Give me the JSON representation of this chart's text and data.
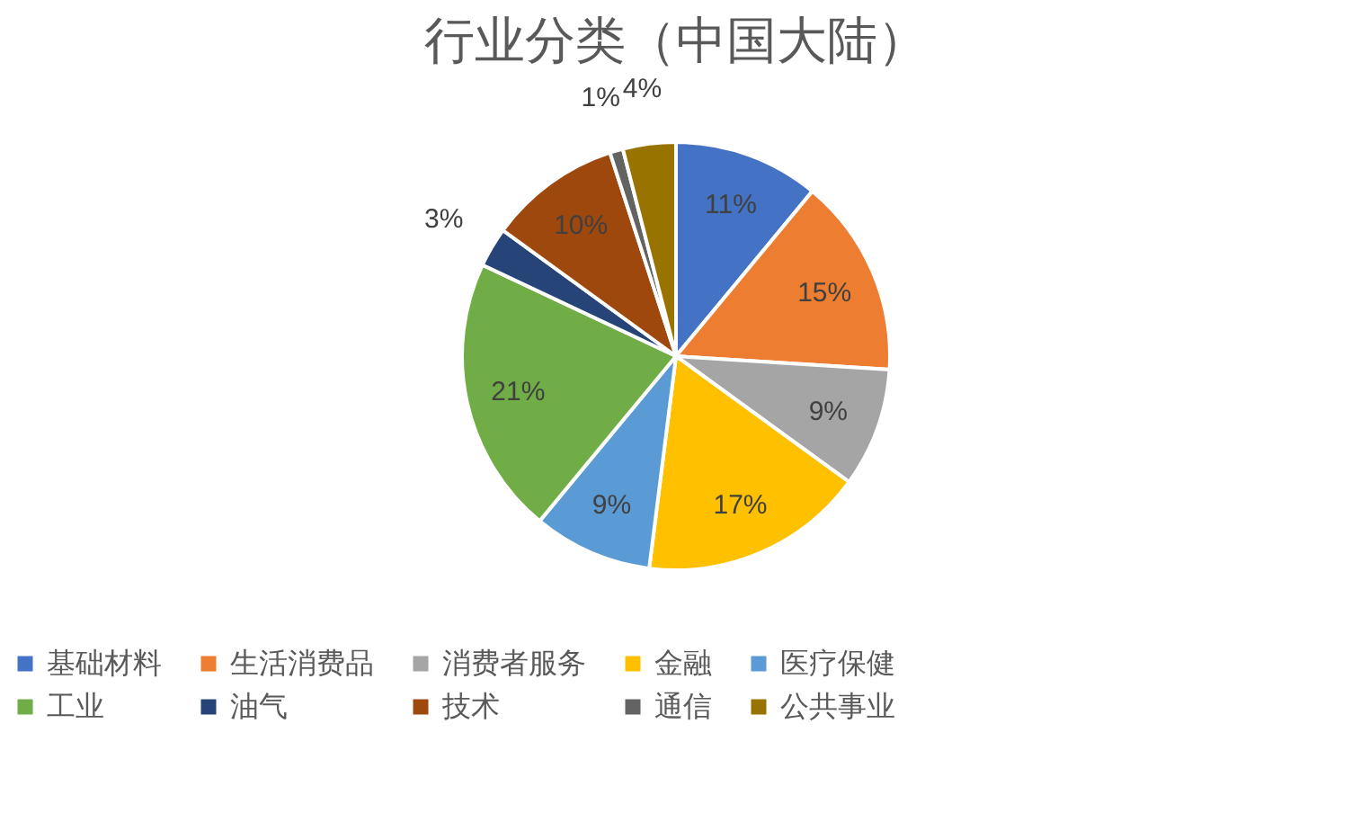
{
  "chart_data": {
    "type": "pie",
    "title": "行业分类（中国大陆）",
    "categories": [
      "基础材料",
      "生活消费品",
      "消费者服务",
      "金融",
      "医疗保健",
      "工业",
      "油气",
      "技术",
      "通信",
      "公共事业"
    ],
    "values": [
      11,
      15,
      9,
      17,
      9,
      21,
      3,
      10,
      1,
      4
    ],
    "value_labels": [
      "11%",
      "15%",
      "9%",
      "17%",
      "9%",
      "21%",
      "3%",
      "10%",
      "1%",
      "4%"
    ],
    "colors": [
      "#4472c4",
      "#ed7d31",
      "#a5a5a5",
      "#ffc000",
      "#5b9bd5",
      "#70ad47",
      "#264478",
      "#9e480e",
      "#636363",
      "#997300"
    ],
    "legend": "bottom"
  }
}
